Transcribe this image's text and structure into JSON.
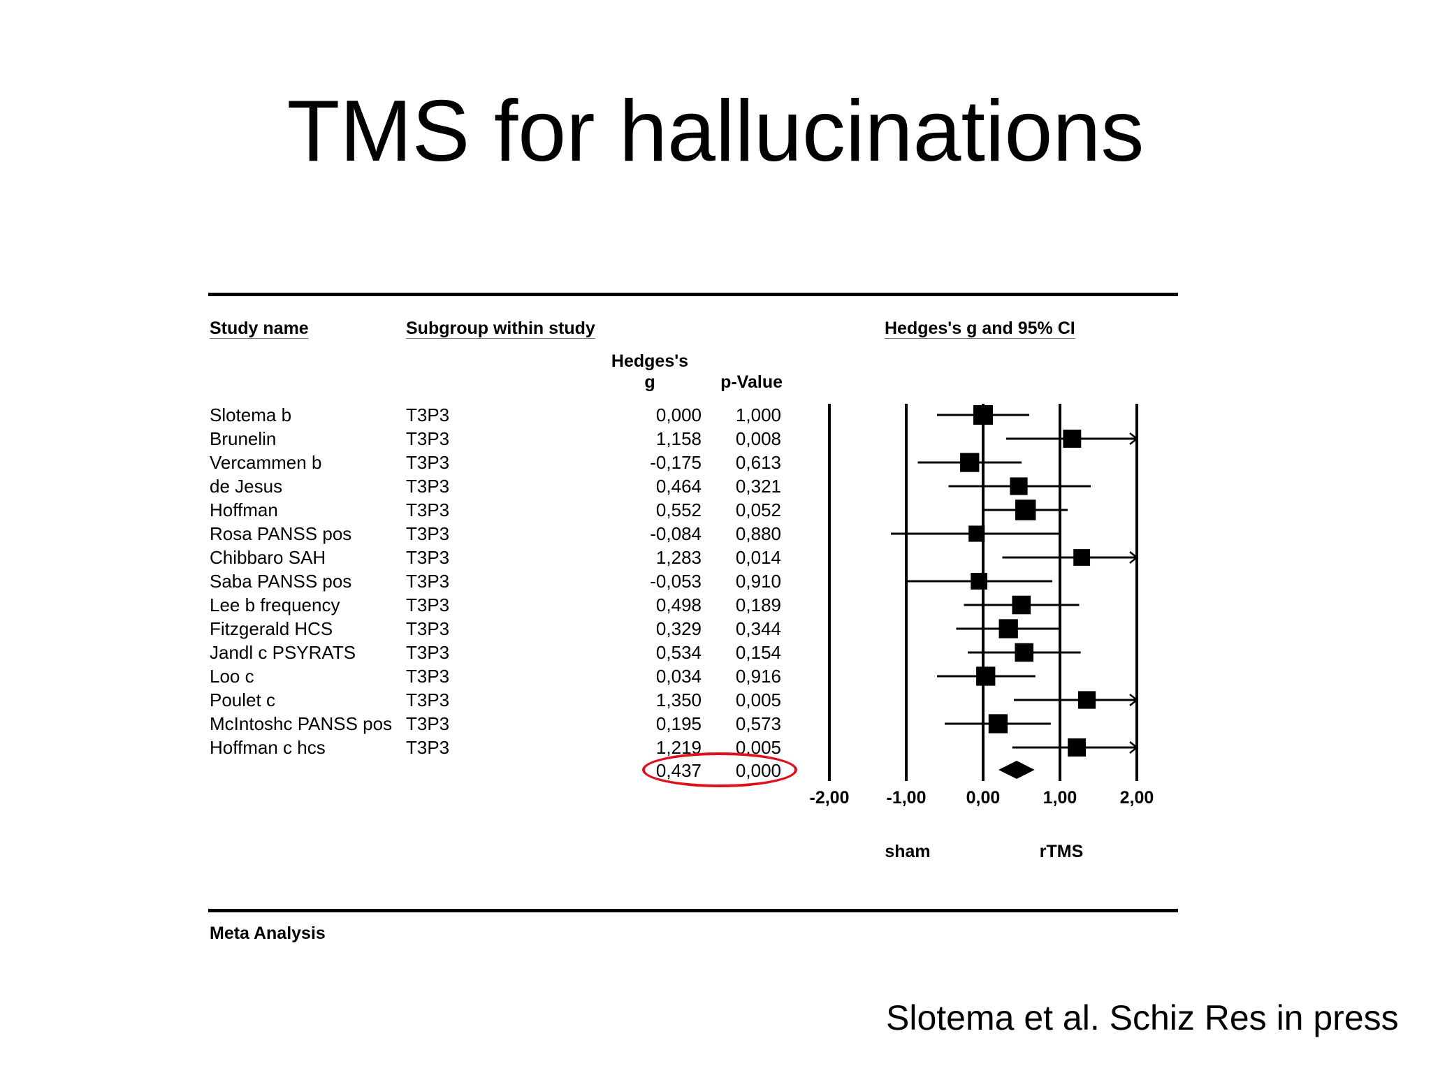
{
  "slide": {
    "title": "TMS for hallucinations",
    "citation": "Slotema et al. Schiz Res in press"
  },
  "headers": {
    "study_name": "Study name",
    "subgroup": "Subgroup within study",
    "ci": "Hedges's g and 95% CI",
    "g_line1": "Hedges's",
    "g_line2": "g",
    "p_value": "p-Value"
  },
  "rows": [
    {
      "study": "Slotema b",
      "subgroup": "T3P3",
      "g": "0,000",
      "p": "1,000"
    },
    {
      "study": "Brunelin",
      "subgroup": "T3P3",
      "g": "1,158",
      "p": "0,008"
    },
    {
      "study": "Vercammen b",
      "subgroup": "T3P3",
      "g": "-0,175",
      "p": "0,613"
    },
    {
      "study": "de Jesus",
      "subgroup": "T3P3",
      "g": "0,464",
      "p": "0,321"
    },
    {
      "study": "Hoffman",
      "subgroup": "T3P3",
      "g": "0,552",
      "p": "0,052"
    },
    {
      "study": "Rosa PANSS pos",
      "subgroup": "T3P3",
      "g": "-0,084",
      "p": "0,880"
    },
    {
      "study": "Chibbaro SAH",
      "subgroup": "T3P3",
      "g": "1,283",
      "p": "0,014"
    },
    {
      "study": "Saba PANSS pos",
      "subgroup": "T3P3",
      "g": "-0,053",
      "p": "0,910"
    },
    {
      "study": "Lee b frequency",
      "subgroup": "T3P3",
      "g": "0,498",
      "p": "0,189"
    },
    {
      "study": "Fitzgerald HCS",
      "subgroup": "T3P3",
      "g": "0,329",
      "p": "0,344"
    },
    {
      "study": "Jandl c PSYRATS",
      "subgroup": "T3P3",
      "g": "0,534",
      "p": "0,154"
    },
    {
      "study": "Loo c",
      "subgroup": "T3P3",
      "g": "0,034",
      "p": "0,916"
    },
    {
      "study": "Poulet c",
      "subgroup": "T3P3",
      "g": "1,350",
      "p": "0,005"
    },
    {
      "study": "McIntoshc PANSS pos",
      "subgroup": "T3P3",
      "g": "0,195",
      "p": "0,573"
    },
    {
      "study": "Hoffman c hcs",
      "subgroup": "T3P3",
      "g": "1,219",
      "p": "0,005"
    }
  ],
  "summary": {
    "g": "0,437",
    "p": "0,000"
  },
  "axis": {
    "ticks": [
      "-2,00",
      "-1,00",
      "0,00",
      "1,00",
      "2,00"
    ],
    "left_label": "sham",
    "right_label": "rTMS"
  },
  "footer": {
    "label": "Meta Analysis"
  },
  "colors": {
    "ink": "#000000",
    "highlight": "#e0101a"
  },
  "chart_data": {
    "type": "forest",
    "xlim": [
      -2,
      2
    ],
    "x_ticks": [
      -2,
      -1,
      0,
      1,
      2
    ],
    "xlabel_left": "sham",
    "xlabel_right": "rTMS",
    "studies": [
      {
        "name": "Slotema b",
        "g": 0.0,
        "lower": -0.6,
        "upper": 0.6,
        "weight": 1.0
      },
      {
        "name": "Brunelin",
        "g": 1.158,
        "lower": 0.3,
        "upper": 2.0,
        "weight": 0.85,
        "arrow_right": true
      },
      {
        "name": "Vercammen b",
        "g": -0.175,
        "lower": -0.85,
        "upper": 0.5,
        "weight": 0.95
      },
      {
        "name": "de Jesus",
        "g": 0.464,
        "lower": -0.45,
        "upper": 1.4,
        "weight": 0.8
      },
      {
        "name": "Hoffman",
        "g": 0.552,
        "lower": 0.0,
        "upper": 1.1,
        "weight": 1.1
      },
      {
        "name": "Rosa PANSS pos",
        "g": -0.084,
        "lower": -1.2,
        "upper": 1.0,
        "weight": 0.65
      },
      {
        "name": "Chibbaro SAH",
        "g": 1.283,
        "lower": 0.25,
        "upper": 2.0,
        "weight": 0.7,
        "arrow_right": true
      },
      {
        "name": "Saba PANSS pos",
        "g": -0.053,
        "lower": -1.0,
        "upper": 0.9,
        "weight": 0.7
      },
      {
        "name": "Lee b frequency",
        "g": 0.498,
        "lower": -0.25,
        "upper": 1.25,
        "weight": 0.9
      },
      {
        "name": "Fitzgerald HCS",
        "g": 0.329,
        "lower": -0.35,
        "upper": 1.0,
        "weight": 0.95
      },
      {
        "name": "Jandl c PSYRATS",
        "g": 0.534,
        "lower": -0.2,
        "upper": 1.27,
        "weight": 0.9
      },
      {
        "name": "Loo c",
        "g": 0.034,
        "lower": -0.6,
        "upper": 0.68,
        "weight": 0.95
      },
      {
        "name": "Poulet c",
        "g": 1.35,
        "lower": 0.4,
        "upper": 2.0,
        "weight": 0.8,
        "arrow_right": true
      },
      {
        "name": "McIntoshc PANSS pos",
        "g": 0.195,
        "lower": -0.5,
        "upper": 0.88,
        "weight": 0.95
      },
      {
        "name": "Hoffman c hcs",
        "g": 1.219,
        "lower": 0.38,
        "upper": 2.0,
        "weight": 0.85,
        "arrow_right": true
      }
    ],
    "summary": {
      "g": 0.437,
      "lower": 0.2,
      "upper": 0.67
    }
  }
}
